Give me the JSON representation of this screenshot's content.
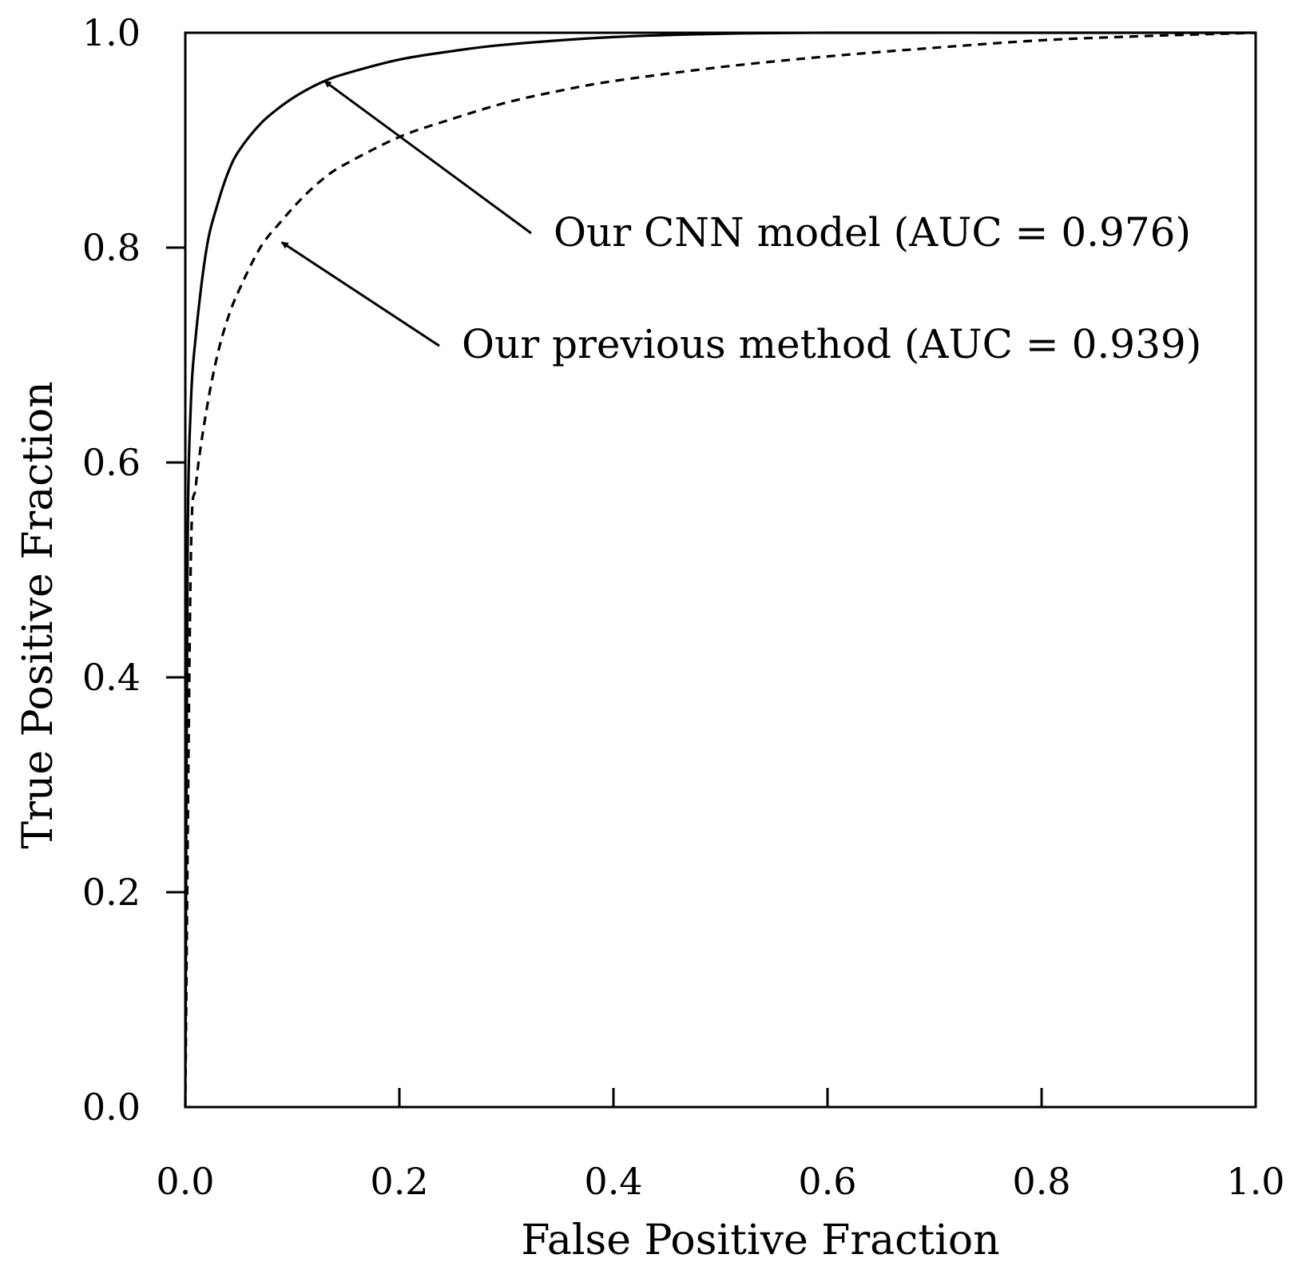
{
  "chart_data": {
    "type": "line",
    "title": "",
    "xlabel": "False Positive Fraction",
    "ylabel": "True Positive Fraction",
    "xlim": [
      0.0,
      1.0
    ],
    "ylim": [
      0.0,
      1.0
    ],
    "x_ticks": [
      "0.0",
      "0.2",
      "0.4",
      "0.6",
      "0.8",
      "1.0"
    ],
    "y_ticks": [
      "0.0",
      "0.2",
      "0.4",
      "0.6",
      "0.8",
      "1.0"
    ],
    "grid": false,
    "legend": "none",
    "series": [
      {
        "name": "Our CNN model (AUC = 0.976)",
        "style": "solid",
        "color": "#000000",
        "x": [
          0.0,
          0.002,
          0.005,
          0.01,
          0.02,
          0.03,
          0.04,
          0.05,
          0.07,
          0.09,
          0.11,
          0.13,
          0.15,
          0.2,
          0.25,
          0.3,
          0.4,
          0.5,
          0.6,
          0.8,
          1.0
        ],
        "y": [
          0.0,
          0.5,
          0.65,
          0.72,
          0.8,
          0.84,
          0.87,
          0.89,
          0.915,
          0.932,
          0.945,
          0.955,
          0.962,
          0.975,
          0.983,
          0.989,
          0.996,
          0.999,
          1.0,
          1.0,
          1.0
        ]
      },
      {
        "name": "Our previous method (AUC = 0.939)",
        "style": "dashed",
        "color": "#000000",
        "x": [
          0.0,
          0.005,
          0.01,
          0.02,
          0.03,
          0.04,
          0.05,
          0.07,
          0.09,
          0.11,
          0.13,
          0.15,
          0.2,
          0.25,
          0.3,
          0.35,
          0.4,
          0.5,
          0.6,
          0.7,
          0.8,
          0.9,
          1.0
        ],
        "y": [
          0.0,
          0.5,
          0.58,
          0.65,
          0.7,
          0.735,
          0.76,
          0.8,
          0.825,
          0.847,
          0.865,
          0.878,
          0.903,
          0.92,
          0.935,
          0.946,
          0.955,
          0.968,
          0.978,
          0.986,
          0.993,
          0.997,
          1.0
        ]
      }
    ],
    "annotations": [
      {
        "text": "Our CNN model (AUC = 0.976)",
        "arrow_to": [
          0.13,
          0.955
        ]
      },
      {
        "text": "Our previous method (AUC = 0.939)",
        "arrow_to": [
          0.09,
          0.805
        ]
      }
    ]
  }
}
